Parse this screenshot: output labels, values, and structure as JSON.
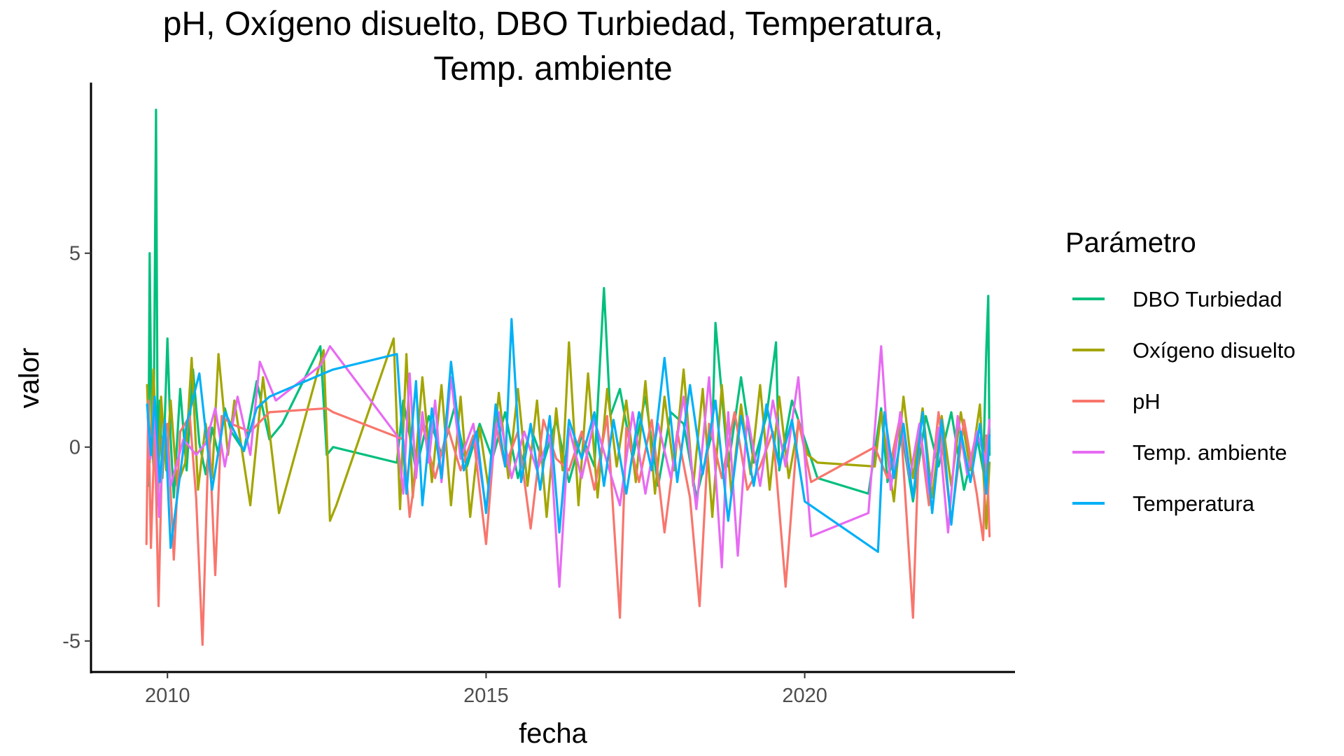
{
  "chart_data": {
    "type": "line",
    "title_lines": [
      "pH, Oxígeno disuelto, DBO Turbiedad, Temperatura,",
      "Temp. ambiente"
    ],
    "xlabel": "fecha",
    "ylabel": "valor",
    "xlim": [
      2008.8,
      2023.3
    ],
    "ylim": [
      -5.8,
      9.4
    ],
    "x_ticks": [
      2010,
      2015,
      2020
    ],
    "x_tick_labels": [
      "2010",
      "2015",
      "2020"
    ],
    "y_ticks": [
      -5,
      0,
      5
    ],
    "y_tick_labels": [
      "-5",
      "0",
      "5"
    ],
    "grid": false,
    "legend": {
      "title": "Parámetro",
      "position": "right",
      "entries": [
        "DBO Turbiedad",
        "Oxígeno disuelto",
        "pH",
        "Temp. ambiente",
        "Temperatura"
      ]
    },
    "colors": {
      "DBO Turbiedad": "#00BF7D",
      "Oxígeno disuelto": "#A3A500",
      "pH": "#F8766D",
      "Temp. ambiente": "#E76BF3",
      "Temperatura": "#00B0F6"
    },
    "series": [
      {
        "name": "DBO Turbiedad",
        "x": [
          2009.7,
          2009.72,
          2009.75,
          2009.78,
          2009.82,
          2009.85,
          2009.88,
          2009.92,
          2009.95,
          2010.0,
          2010.05,
          2010.1,
          2010.2,
          2010.3,
          2010.4,
          2010.5,
          2010.6,
          2010.7,
          2010.8,
          2010.9,
          2011.0,
          2011.2,
          2011.4,
          2011.6,
          2011.8,
          2012.4,
          2012.5,
          2012.6,
          2013.6,
          2013.7,
          2013.9,
          2014.1,
          2014.3,
          2014.5,
          2014.7,
          2014.9,
          2015.1,
          2015.3,
          2015.5,
          2015.7,
          2015.9,
          2016.1,
          2016.3,
          2016.5,
          2016.7,
          2016.85,
          2016.95,
          2017.1,
          2017.3,
          2017.5,
          2017.7,
          2017.9,
          2018.1,
          2018.3,
          2018.55,
          2018.6,
          2018.8,
          2019.0,
          2019.2,
          2019.4,
          2019.55,
          2019.6,
          2019.8,
          2020.0,
          2020.2,
          2021.0,
          2021.2,
          2021.3,
          2021.5,
          2021.7,
          2021.9,
          2022.1,
          2022.3,
          2022.5,
          2022.7,
          2022.8,
          2022.85,
          2022.88,
          2022.9
        ],
        "y": [
          -1.0,
          5.0,
          0.5,
          -0.5,
          8.7,
          -1.5,
          1.2,
          -0.8,
          0.3,
          2.8,
          0.2,
          -1.3,
          1.5,
          -0.6,
          2.0,
          0.1,
          -0.7,
          0.5,
          -0.2,
          1.0,
          0.4,
          -0.1,
          1.7,
          0.2,
          0.6,
          2.6,
          -0.2,
          0.0,
          -0.4,
          1.2,
          -0.6,
          0.8,
          -0.2,
          1.0,
          -0.5,
          0.6,
          -0.3,
          0.9,
          -0.8,
          0.5,
          -0.4,
          0.7,
          -0.9,
          0.3,
          -0.5,
          4.1,
          0.8,
          1.5,
          -0.3,
          1.3,
          -1.0,
          0.9,
          0.6,
          -1.3,
          0.4,
          3.2,
          -0.5,
          1.8,
          -0.4,
          0.8,
          2.7,
          -0.6,
          1.2,
          0.2,
          -0.8,
          -1.2,
          1.0,
          -0.9,
          0.6,
          -1.4,
          0.8,
          -0.5,
          0.9,
          -1.1,
          0.3,
          -0.6,
          2.5,
          3.9,
          -0.2
        ]
      },
      {
        "name": "Oxígeno disuelto",
        "x": [
          2009.68,
          2009.72,
          2009.78,
          2009.85,
          2009.9,
          2009.98,
          2010.05,
          2010.15,
          2010.28,
          2010.38,
          2010.48,
          2010.6,
          2010.7,
          2010.8,
          2010.95,
          2011.05,
          2011.3,
          2011.5,
          2011.75,
          2012.45,
          2012.55,
          2012.65,
          2013.55,
          2013.65,
          2013.75,
          2013.85,
          2014.0,
          2014.15,
          2014.3,
          2014.45,
          2014.6,
          2014.75,
          2014.9,
          2015.05,
          2015.2,
          2015.35,
          2015.5,
          2015.65,
          2015.8,
          2015.95,
          2016.1,
          2016.2,
          2016.3,
          2016.45,
          2016.6,
          2016.75,
          2016.9,
          2017.05,
          2017.2,
          2017.35,
          2017.5,
          2017.65,
          2017.8,
          2017.95,
          2018.1,
          2018.25,
          2018.4,
          2018.55,
          2018.7,
          2018.85,
          2019.0,
          2019.15,
          2019.3,
          2019.45,
          2019.6,
          2019.75,
          2019.9,
          2020.05,
          2020.2,
          2021.1,
          2021.2,
          2021.4,
          2021.55,
          2021.7,
          2021.85,
          2022.0,
          2022.15,
          2022.3,
          2022.45,
          2022.6,
          2022.75,
          2022.85,
          2022.9
        ],
        "y": [
          1.6,
          -0.4,
          2.0,
          -1.2,
          1.3,
          -0.6,
          1.2,
          -1.0,
          -0.4,
          2.3,
          -1.1,
          0.6,
          -0.8,
          2.4,
          -0.2,
          1.2,
          -1.5,
          1.8,
          -1.7,
          2.5,
          -1.9,
          -1.5,
          2.8,
          -1.6,
          2.4,
          -1.3,
          1.8,
          -0.9,
          1.6,
          -1.5,
          1.3,
          -1.8,
          0.5,
          -1.2,
          1.4,
          -0.8,
          1.5,
          -1.0,
          1.2,
          -1.8,
          1.0,
          -0.6,
          2.7,
          -1.5,
          1.9,
          -1.3,
          1.5,
          -0.5,
          1.2,
          -0.9,
          1.7,
          -1.2,
          1.3,
          -0.6,
          2.0,
          -1.0,
          1.5,
          -1.8,
          1.6,
          -1.2,
          1.1,
          -0.7,
          1.6,
          -1.1,
          1.3,
          -0.8,
          0.6,
          -0.2,
          -0.4,
          -0.5,
          0.9,
          -1.4,
          1.3,
          -0.8,
          1.0,
          -1.3,
          0.8,
          -1.0,
          0.9,
          -0.6,
          1.1,
          -2.1,
          -0.4
        ]
      },
      {
        "name": "pH",
        "x": [
          2009.67,
          2009.7,
          2009.74,
          2009.8,
          2009.86,
          2009.92,
          2010.0,
          2010.1,
          2010.2,
          2010.35,
          2010.45,
          2010.55,
          2010.65,
          2010.75,
          2010.85,
          2011.0,
          2011.3,
          2011.6,
          2012.5,
          2012.6,
          2013.7,
          2013.8,
          2014.0,
          2014.2,
          2014.4,
          2014.6,
          2014.8,
          2015.0,
          2015.15,
          2015.3,
          2015.5,
          2015.7,
          2015.9,
          2016.1,
          2016.3,
          2016.5,
          2016.7,
          2016.9,
          2017.1,
          2017.2,
          2017.4,
          2017.6,
          2017.8,
          2018.0,
          2018.2,
          2018.35,
          2018.5,
          2018.7,
          2018.9,
          2019.1,
          2019.3,
          2019.5,
          2019.7,
          2019.9,
          2020.1,
          2021.1,
          2021.3,
          2021.5,
          2021.7,
          2021.8,
          2021.95,
          2022.1,
          2022.3,
          2022.5,
          2022.7,
          2022.8,
          2022.85,
          2022.9
        ],
        "y": [
          -2.5,
          1.2,
          -2.6,
          0.5,
          -4.1,
          0.2,
          0.6,
          -2.9,
          0.4,
          0.8,
          -1.3,
          -5.1,
          0.5,
          -3.3,
          0.8,
          0.6,
          0.4,
          0.9,
          1.0,
          0.9,
          0.2,
          -1.8,
          0.6,
          -0.8,
          0.5,
          -0.6,
          0.3,
          -2.5,
          0.6,
          -0.5,
          0.4,
          -2.1,
          0.7,
          -0.3,
          -0.6,
          0.4,
          -1.1,
          0.8,
          -4.4,
          0.5,
          -0.9,
          0.7,
          -2.2,
          0.4,
          -1.3,
          -4.1,
          0.6,
          -0.8,
          0.9,
          -1.1,
          -0.5,
          0.4,
          -3.6,
          0.7,
          -0.9,
          0.0,
          -0.8,
          0.8,
          -4.4,
          0.5,
          -1.5,
          0.9,
          -1.9,
          0.7,
          -1.2,
          -2.4,
          0.3,
          -2.3
        ]
      },
      {
        "name": "Temp. ambiente",
        "x": [
          2009.69,
          2009.73,
          2009.79,
          2009.87,
          2009.95,
          2010.05,
          2010.25,
          2010.45,
          2010.6,
          2010.75,
          2010.9,
          2011.1,
          2011.3,
          2011.45,
          2011.7,
          2012.4,
          2012.55,
          2013.6,
          2013.7,
          2013.8,
          2013.9,
          2014.0,
          2014.1,
          2014.2,
          2014.3,
          2014.45,
          2014.6,
          2014.8,
          2015.0,
          2015.2,
          2015.4,
          2015.6,
          2015.8,
          2016.0,
          2016.15,
          2016.3,
          2016.5,
          2016.7,
          2016.9,
          2017.1,
          2017.3,
          2017.5,
          2017.7,
          2017.9,
          2018.1,
          2018.3,
          2018.5,
          2018.7,
          2018.8,
          2018.95,
          2019.1,
          2019.3,
          2019.5,
          2019.7,
          2019.9,
          2020.1,
          2021.0,
          2021.2,
          2021.35,
          2021.5,
          2021.65,
          2021.8,
          2021.95,
          2022.1,
          2022.25,
          2022.4,
          2022.55,
          2022.7,
          2022.85,
          2022.9
        ],
        "y": [
          0.8,
          -0.3,
          1.2,
          -1.8,
          0.6,
          -1.0,
          0.2,
          -0.2,
          0.1,
          1.0,
          -0.5,
          1.3,
          -0.2,
          2.2,
          1.2,
          2.1,
          2.6,
          0.3,
          -1.2,
          1.9,
          -0.8,
          0.9,
          -0.4,
          1.2,
          -0.9,
          1.8,
          -0.3,
          0.6,
          -1.6,
          0.9,
          -0.8,
          0.4,
          -0.6,
          0.3,
          -3.6,
          0.5,
          -0.8,
          0.7,
          -0.4,
          -1.5,
          0.9,
          -1.2,
          0.6,
          -0.8,
          1.3,
          -1.6,
          1.8,
          -3.1,
          0.9,
          -2.8,
          0.8,
          -1.0,
          1.2,
          -0.5,
          1.8,
          -2.3,
          -1.7,
          2.6,
          -1.1,
          0.9,
          -0.8,
          0.6,
          -1.2,
          0.5,
          -2.2,
          0.8,
          -0.7,
          0.4,
          -0.4,
          0.7
        ]
      },
      {
        "name": "Temperatura",
        "x": [
          2009.68,
          2009.74,
          2009.8,
          2009.88,
          2009.96,
          2010.05,
          2010.3,
          2010.5,
          2010.7,
          2010.9,
          2011.2,
          2011.4,
          2011.6,
          2012.45,
          2012.6,
          2013.6,
          2013.75,
          2013.9,
          2014.0,
          2014.15,
          2014.3,
          2014.45,
          2014.65,
          2014.85,
          2015.0,
          2015.15,
          2015.3,
          2015.4,
          2015.55,
          2015.7,
          2015.85,
          2016.0,
          2016.15,
          2016.3,
          2016.5,
          2016.7,
          2016.85,
          2017.0,
          2017.2,
          2017.4,
          2017.6,
          2017.8,
          2018.0,
          2018.2,
          2018.4,
          2018.6,
          2018.8,
          2019.0,
          2019.2,
          2019.4,
          2019.6,
          2019.8,
          2020.0,
          2021.15,
          2021.25,
          2021.4,
          2021.55,
          2021.7,
          2021.85,
          2022.0,
          2022.15,
          2022.3,
          2022.45,
          2022.6,
          2022.75,
          2022.85,
          2022.9
        ],
        "y": [
          1.1,
          -0.2,
          1.3,
          -0.9,
          0.7,
          -2.6,
          0.6,
          1.9,
          -1.1,
          0.9,
          -0.1,
          1.0,
          1.3,
          1.9,
          2.0,
          2.4,
          -1.2,
          1.7,
          -1.5,
          1.0,
          -0.8,
          2.2,
          -0.6,
          0.4,
          -1.7,
          1.1,
          -0.5,
          3.3,
          -0.9,
          0.6,
          -1.1,
          0.8,
          -2.2,
          0.7,
          -0.3,
          0.9,
          -1.0,
          0.7,
          -1.2,
          0.9,
          -0.6,
          2.3,
          -0.9,
          1.6,
          -0.7,
          1.2,
          -1.9,
          0.8,
          -1.0,
          1.1,
          -0.5,
          0.7,
          -1.4,
          -2.7,
          0.9,
          -0.8,
          0.6,
          -1.3,
          0.9,
          -1.7,
          0.7,
          -2.0,
          0.4,
          -0.9,
          0.6,
          -1.2,
          0.3
        ]
      }
    ]
  }
}
